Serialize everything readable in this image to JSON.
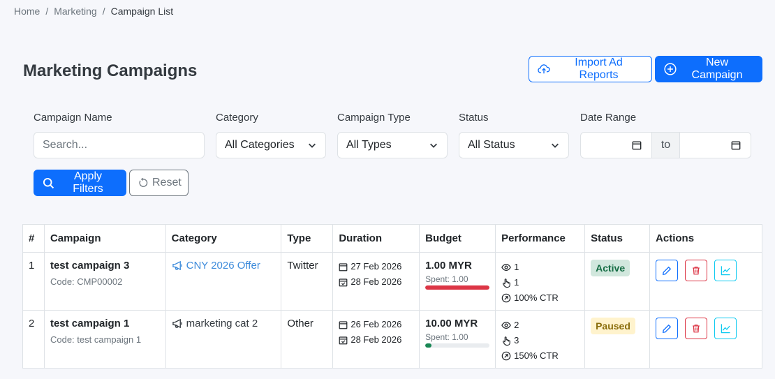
{
  "breadcrumb": {
    "home": "Home",
    "marketing": "Marketing",
    "current": "Campaign List",
    "separator": "/"
  },
  "page": {
    "title": "Marketing Campaigns"
  },
  "header_actions": {
    "import_label": "Import Ad Reports",
    "new_label": "New Campaign"
  },
  "filters": {
    "campaign_name_label": "Campaign Name",
    "campaign_name_placeholder": "Search...",
    "category_label": "Category",
    "category_value": "All Categories",
    "type_label": "Campaign Type",
    "type_value": "All Types",
    "status_label": "Status",
    "status_value": "All Status",
    "date_range_label": "Date Range",
    "date_to": "to",
    "apply_label": "Apply Filters",
    "reset_label": "Reset"
  },
  "table": {
    "headers": [
      "#",
      "Campaign",
      "Category",
      "Type",
      "Duration",
      "Budget",
      "Performance",
      "Status",
      "Actions"
    ],
    "rows": [
      {
        "index": "1",
        "name": "test campaign 3",
        "code": "Code: CMP00002",
        "category": "CNY 2026 Offer",
        "type": "Twitter",
        "start": "27 Feb 2026",
        "end": "28 Feb 2026",
        "budget": "1.00 MYR",
        "spent": "Spent: 1.00",
        "spent_fraction": 1.0,
        "spent_color": "#dc3545",
        "views": "1",
        "clicks": "1",
        "ctr": "100% CTR",
        "status": "Active"
      },
      {
        "index": "2",
        "name": "test campaign 1",
        "code": "Code: test campaign 1",
        "category": "marketing cat 2",
        "type": "Other",
        "start": "26 Feb 2026",
        "end": "28 Feb 2026",
        "budget": "10.00 MYR",
        "spent": "Spent: 1.00",
        "spent_fraction": 0.1,
        "spent_color": "#198754",
        "views": "2",
        "clicks": "3",
        "ctr": "150% CTR",
        "status": "Paused"
      }
    ]
  },
  "colors": {
    "primary": "#0d6efd",
    "danger": "#dc3545",
    "info": "#0dcaf0",
    "success": "#198754"
  },
  "icons": [
    "cloud-upload-icon",
    "plus-circle-icon",
    "chevron-down-icon",
    "calendar-icon",
    "search-icon",
    "reset-icon",
    "megaphone-icon",
    "eye-icon",
    "pointer-icon",
    "ctr-arrow-icon",
    "pencil-icon",
    "trash-icon",
    "chart-icon"
  ]
}
